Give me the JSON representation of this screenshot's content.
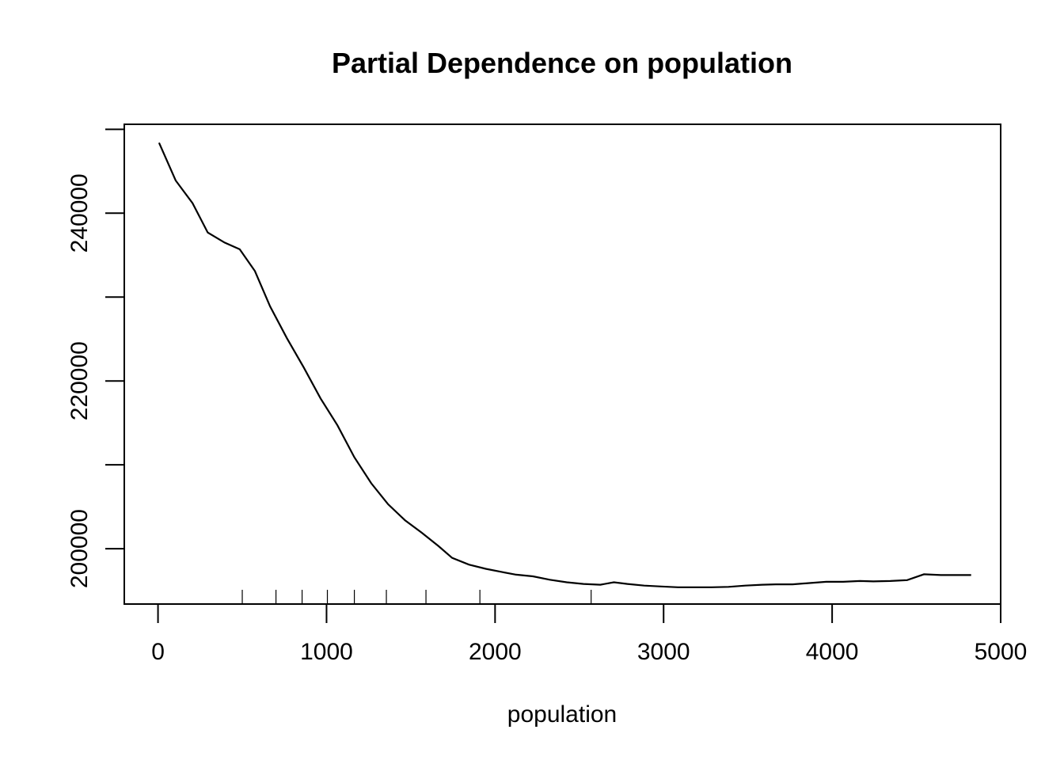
{
  "chart_data": {
    "type": "line",
    "title": "Partial Dependence on population",
    "xlabel": "population",
    "ylabel": "",
    "xlim": [
      -200,
      5000
    ],
    "ylim": [
      193400,
      250600
    ],
    "x_ticks": [
      0,
      1000,
      2000,
      3000,
      4000,
      5000
    ],
    "x_tick_labels": [
      "0",
      "1000",
      "2000",
      "3000",
      "4000",
      "5000"
    ],
    "y_ticks": [
      200000,
      220000,
      240000
    ],
    "y_tick_labels": [
      "200000",
      "220000",
      "240000"
    ],
    "y_minor_ticks": [
      210000,
      230000,
      250000
    ],
    "grid": false,
    "rug": [
      500,
      700,
      855,
      1005,
      1165,
      1355,
      1590,
      1910,
      2570
    ],
    "series": [
      {
        "x": [
          6,
          105,
          205,
          295,
          395,
          485,
          575,
          665,
          765,
          865,
          965,
          1065,
          1165,
          1265,
          1365,
          1465,
          1565,
          1665,
          1745,
          1845,
          1945,
          2045,
          2125,
          2225,
          2325,
          2425,
          2525,
          2625,
          2705,
          2785,
          2885,
          2985,
          3085,
          3185,
          3285,
          3385,
          3485,
          3585,
          3665,
          3765,
          3865,
          3965,
          4065,
          4165,
          4245,
          4345,
          4445,
          4545,
          4645,
          4745,
          4825
        ],
        "y": [
          248400,
          243900,
          241200,
          237700,
          236500,
          235700,
          233100,
          228900,
          225100,
          221600,
          217900,
          214700,
          210900,
          207800,
          205300,
          203400,
          201900,
          200300,
          198900,
          198100,
          197600,
          197200,
          196900,
          196700,
          196300,
          196000,
          195800,
          195700,
          196000,
          195800,
          195600,
          195500,
          195400,
          195400,
          195400,
          195450,
          195600,
          195700,
          195750,
          195750,
          195900,
          196050,
          196050,
          196150,
          196100,
          196150,
          196250,
          196950,
          196850,
          196850,
          196850
        ]
      }
    ]
  }
}
